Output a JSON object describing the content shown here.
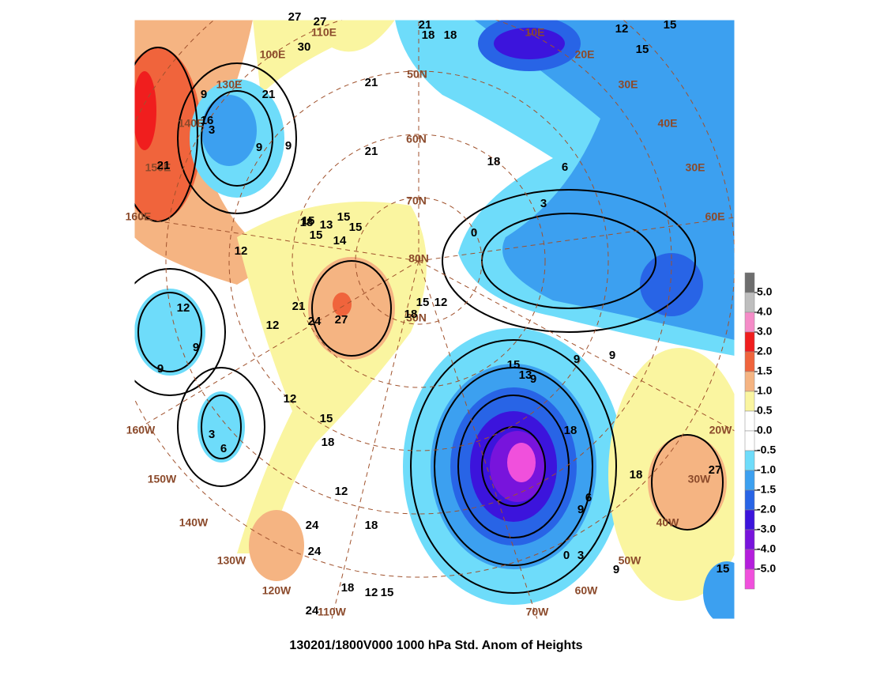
{
  "title": "130201/1800V000 1000 hPa Std. Anom of Heights",
  "colorbar": {
    "colors": [
      "#6e6e6e",
      "#bebebe",
      "#f58cc8",
      "#f01e1e",
      "#f0643c",
      "#f5b482",
      "#faf5a0",
      "#ffffff",
      "#ffffff",
      "#6edcfa",
      "#3ca0f0",
      "#2864e6",
      "#3c14dc",
      "#7814dc",
      "#b41edc",
      "#f050dc"
    ],
    "ticks": [
      {
        "value": 5,
        "label": "5.0"
      },
      {
        "value": 4,
        "label": "4.0"
      },
      {
        "value": 3,
        "label": "3.0"
      },
      {
        "value": 2,
        "label": "2.0"
      },
      {
        "value": 1.5,
        "label": "1.5"
      },
      {
        "value": 1,
        "label": "1.0"
      },
      {
        "value": 0.5,
        "label": "0.5"
      },
      {
        "value": 0,
        "label": "0.0"
      },
      {
        "value": -0.5,
        "label": "-0.5"
      },
      {
        "value": -1,
        "label": "-1.0"
      },
      {
        "value": -1.5,
        "label": "-1.5"
      },
      {
        "value": -2,
        "label": "-2.0"
      },
      {
        "value": -3,
        "label": "-3.0"
      },
      {
        "value": -4,
        "label": "-4.0"
      },
      {
        "value": -5,
        "label": "-5.0"
      }
    ]
  },
  "graticule_labels": [
    "110E",
    "100E",
    "130E",
    "140E",
    "150E",
    "160E",
    "10E",
    "20E",
    "30E",
    "40E",
    "30E",
    "60E",
    "50N",
    "60N",
    "70N",
    "80N",
    "30N",
    "160W",
    "150W",
    "140W",
    "130W",
    "120W",
    "110W",
    "70W",
    "60W",
    "50W",
    "40W",
    "30W",
    "20W"
  ],
  "contour_labels": [
    27,
    27,
    30,
    21,
    21,
    18,
    18,
    21,
    9,
    12,
    15,
    21,
    16,
    3,
    9,
    9,
    21,
    18,
    6,
    3,
    15,
    15,
    13,
    18,
    15,
    14,
    15,
    15,
    21,
    24,
    27,
    15,
    12,
    12,
    18,
    12,
    12,
    9,
    9,
    15,
    13,
    9,
    9,
    18,
    15,
    18,
    12,
    18,
    24,
    24,
    18,
    12,
    15,
    24,
    6,
    9,
    3,
    0,
    9,
    18,
    27,
    15,
    3,
    6,
    12,
    9,
    0
  ]
}
